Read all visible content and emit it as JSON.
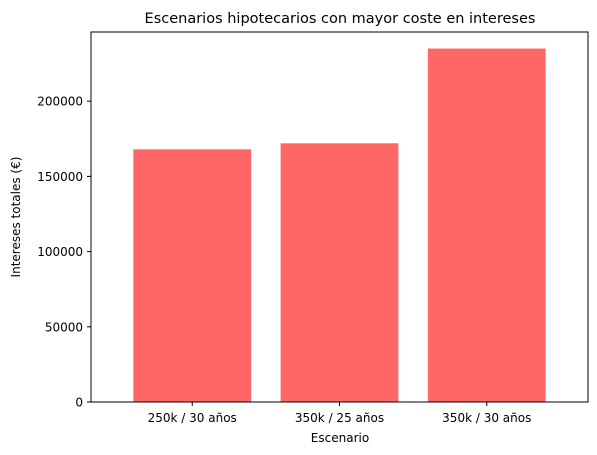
{
  "chart_data": {
    "type": "bar",
    "title": "Escenarios hipotecarios con mayor coste en intereses",
    "xlabel": "Escenario",
    "ylabel": "Intereses totales (€)",
    "categories": [
      "250k / 30 años",
      "350k / 25 años",
      "350k / 30 años"
    ],
    "values": [
      168000,
      172000,
      235000
    ],
    "ylim": [
      0,
      246000
    ],
    "yticks": [
      0,
      50000,
      100000,
      150000,
      200000
    ],
    "bar_color": "#ff6666",
    "grid": false,
    "legend": "none"
  }
}
